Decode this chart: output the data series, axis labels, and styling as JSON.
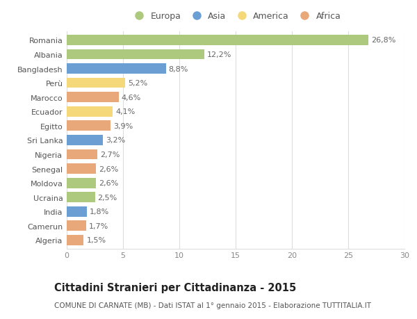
{
  "countries": [
    "Romania",
    "Albania",
    "Bangladesh",
    "Perù",
    "Marocco",
    "Ecuador",
    "Egitto",
    "Sri Lanka",
    "Nigeria",
    "Senegal",
    "Moldova",
    "Ucraina",
    "India",
    "Camerun",
    "Algeria"
  ],
  "values": [
    26.8,
    12.2,
    8.8,
    5.2,
    4.6,
    4.1,
    3.9,
    3.2,
    2.7,
    2.6,
    2.6,
    2.5,
    1.8,
    1.7,
    1.5
  ],
  "labels": [
    "26,8%",
    "12,2%",
    "8,8%",
    "5,2%",
    "4,6%",
    "4,1%",
    "3,9%",
    "3,2%",
    "2,7%",
    "2,6%",
    "2,6%",
    "2,5%",
    "1,8%",
    "1,7%",
    "1,5%"
  ],
  "continents": [
    "Europa",
    "Europa",
    "Asia",
    "America",
    "Africa",
    "America",
    "Africa",
    "Asia",
    "Africa",
    "Africa",
    "Europa",
    "Europa",
    "Asia",
    "Africa",
    "Africa"
  ],
  "continent_colors": {
    "Europa": "#adc97e",
    "Asia": "#6b9fd4",
    "America": "#f5d87a",
    "Africa": "#e8a87a"
  },
  "legend_order": [
    "Europa",
    "Asia",
    "America",
    "Africa"
  ],
  "legend_colors": [
    "#adc97e",
    "#6b9fd4",
    "#f5d87a",
    "#e8a87a"
  ],
  "xlim": [
    0,
    30
  ],
  "xticks": [
    0,
    5,
    10,
    15,
    20,
    25,
    30
  ],
  "title": "Cittadini Stranieri per Cittadinanza - 2015",
  "subtitle": "COMUNE DI CARNATE (MB) - Dati ISTAT al 1° gennaio 2015 - Elaborazione TUTTITALIA.IT",
  "background_color": "#ffffff",
  "grid_color": "#dddddd",
  "bar_height": 0.72,
  "label_fontsize": 8.0,
  "tick_fontsize": 8.0,
  "title_fontsize": 10.5,
  "subtitle_fontsize": 7.5
}
